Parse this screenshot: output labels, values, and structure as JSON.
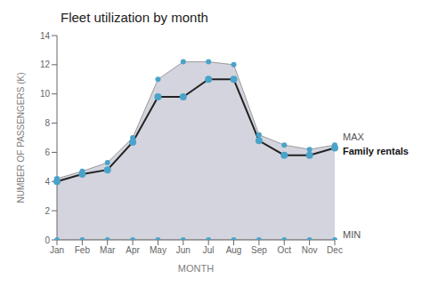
{
  "chart_data": {
    "type": "line",
    "title": "Fleet utilization by month",
    "x_label": "MONTH",
    "y_label": "NUMBER OF PASSENGERS (K)",
    "categories": [
      "Jan",
      "Feb",
      "Mar",
      "Apr",
      "May",
      "Jun",
      "Jul",
      "Aug",
      "Sep",
      "Oct",
      "Nov",
      "Dec"
    ],
    "series": [
      {
        "name": "MAX",
        "type": "area",
        "marker": "circle",
        "values": [
          4.2,
          4.7,
          5.3,
          7.0,
          11.0,
          12.2,
          12.2,
          12.0,
          7.2,
          6.5,
          6.2,
          6.5
        ]
      },
      {
        "name": "Family rentals",
        "type": "line",
        "marker": "circle",
        "values": [
          4.0,
          4.5,
          4.8,
          6.7,
          9.8,
          9.8,
          11.0,
          11.0,
          6.8,
          5.8,
          5.8,
          6.3
        ]
      },
      {
        "name": "MIN",
        "type": "area",
        "marker": "circle",
        "values": [
          0.0,
          0.0,
          0.0,
          0.0,
          0.0,
          0.0,
          0.0,
          0.0,
          0.0,
          0.0,
          0.0,
          0.0
        ]
      }
    ],
    "ylim": [
      0,
      14
    ],
    "yticks": [
      0,
      2,
      4,
      6,
      8,
      10,
      12,
      14
    ],
    "grid": false
  }
}
